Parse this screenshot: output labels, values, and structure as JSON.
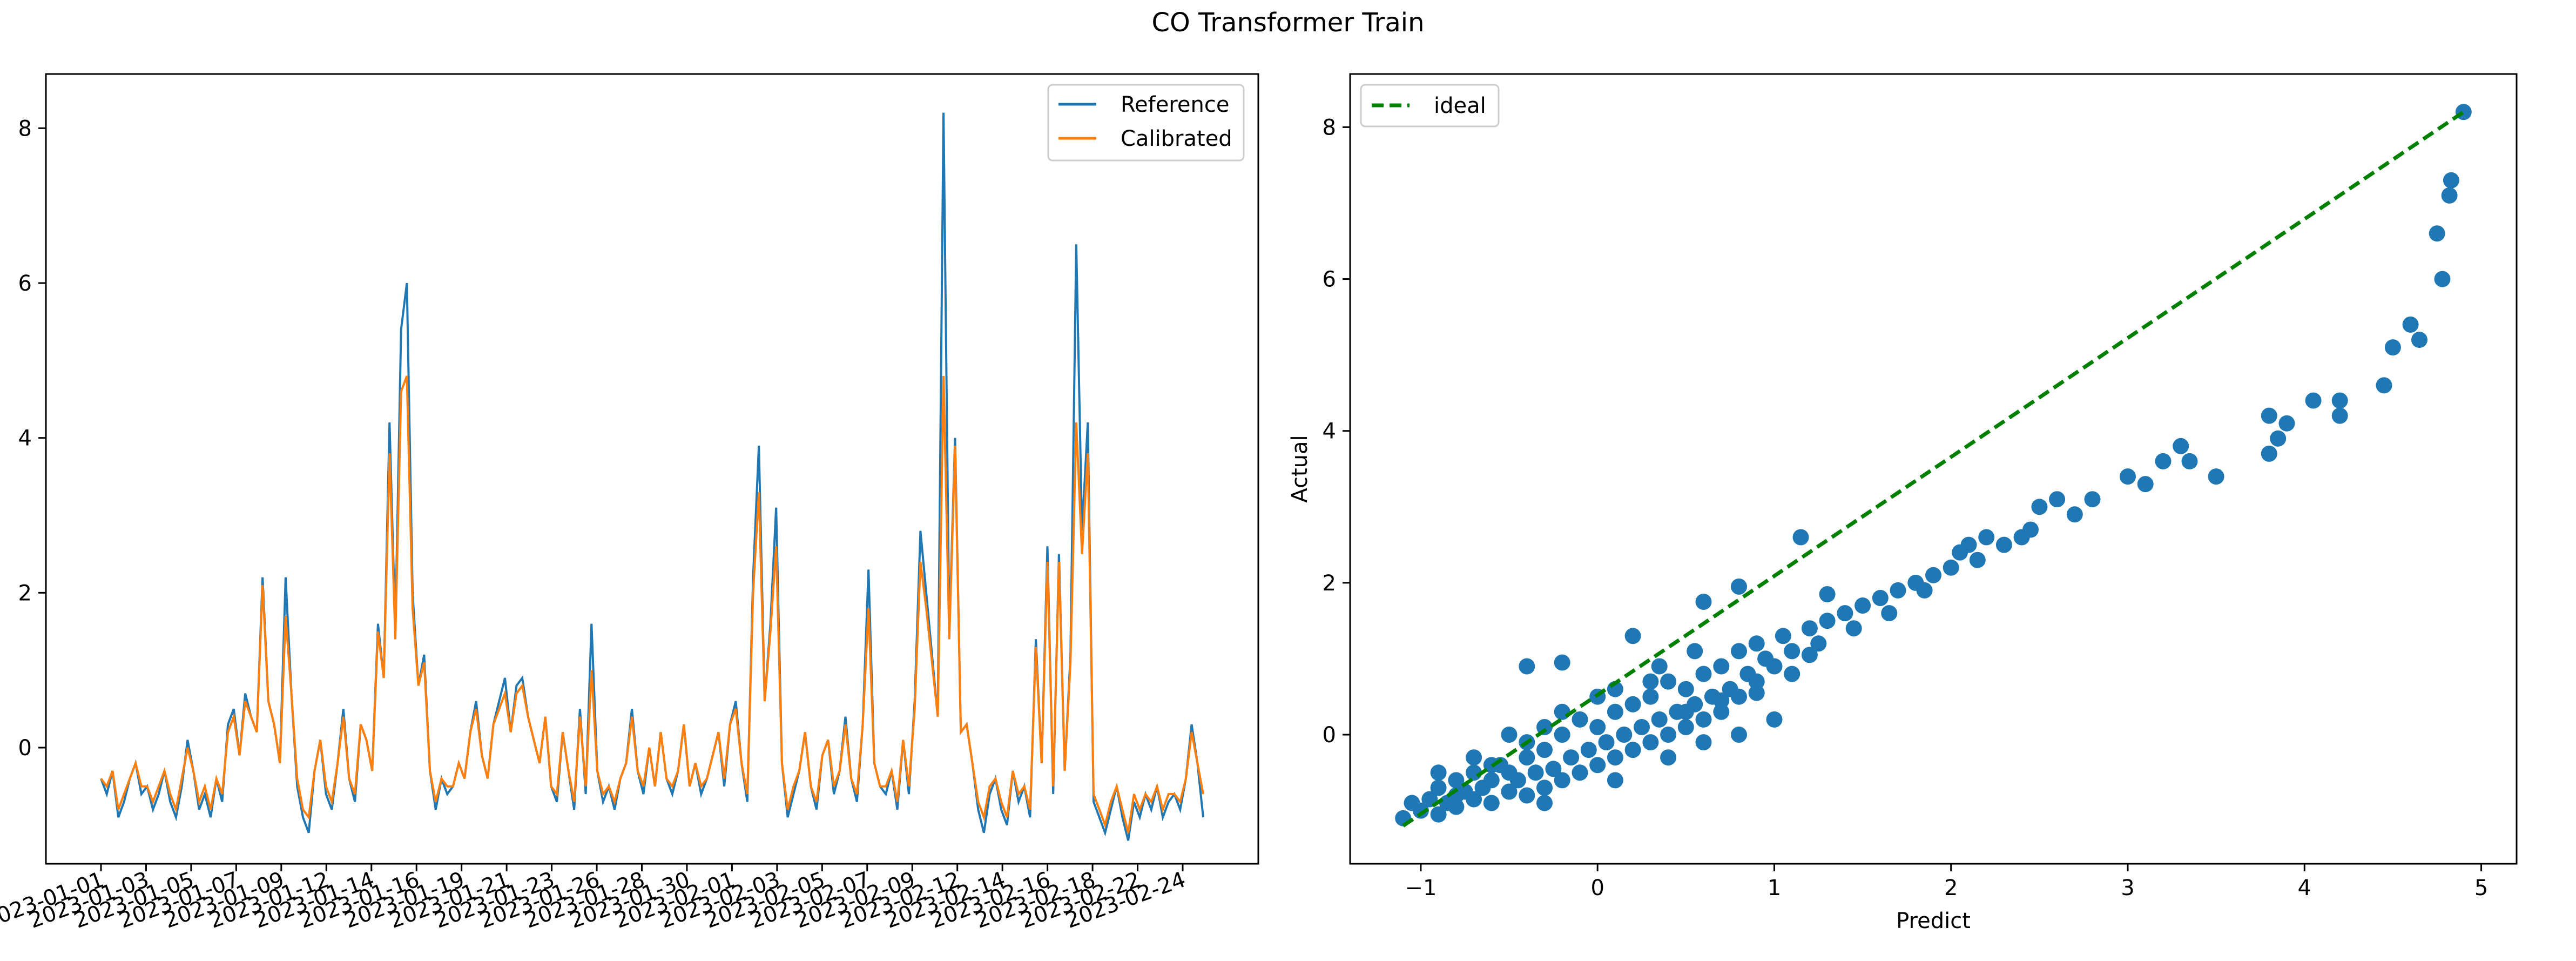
{
  "figure": {
    "title": "CO Transformer Train"
  },
  "chart_data": [
    {
      "type": "line",
      "title": "",
      "xlabel": "",
      "ylabel": "",
      "x_tick_labels": [
        "2023-01-01",
        "2023-01-03",
        "2023-01-05",
        "2023-01-07",
        "2023-01-09",
        "2023-01-12",
        "2023-01-14",
        "2023-01-16",
        "2023-01-19",
        "2023-01-21",
        "2023-01-23",
        "2023-01-26",
        "2023-01-28",
        "2023-01-30",
        "2023-02-01",
        "2023-02-03",
        "2023-02-05",
        "2023-02-07",
        "2023-02-09",
        "2023-02-12",
        "2023-02-14",
        "2023-02-16",
        "2023-02-18",
        "2023-02-22",
        "2023-02-24"
      ],
      "ylim": [
        -1.5,
        8.7
      ],
      "y_ticks": [
        0,
        2,
        4,
        6,
        8
      ],
      "legend": {
        "position": "top-right"
      },
      "grid": false,
      "series": [
        {
          "name": "Reference",
          "color": "#1f77b4",
          "values": [
            -0.4,
            -0.6,
            -0.3,
            -0.9,
            -0.7,
            -0.4,
            -0.2,
            -0.6,
            -0.5,
            -0.8,
            -0.6,
            -0.3,
            -0.7,
            -0.9,
            -0.5,
            0.1,
            -0.3,
            -0.8,
            -0.6,
            -0.9,
            -0.4,
            -0.7,
            0.3,
            0.5,
            -0.1,
            0.7,
            0.4,
            0.2,
            2.2,
            0.6,
            0.3,
            -0.2,
            2.2,
            0.7,
            -0.5,
            -0.9,
            -1.1,
            -0.3,
            0.1,
            -0.6,
            -0.8,
            -0.2,
            0.5,
            -0.4,
            -0.7,
            0.3,
            0.1,
            -0.3,
            1.6,
            0.9,
            4.2,
            1.5,
            5.4,
            6.0,
            2.0,
            0.8,
            1.2,
            -0.3,
            -0.8,
            -0.4,
            -0.6,
            -0.5,
            -0.2,
            -0.4,
            0.2,
            0.6,
            -0.1,
            -0.4,
            0.3,
            0.6,
            0.9,
            0.2,
            0.8,
            0.9,
            0.4,
            0.1,
            -0.2,
            0.4,
            -0.5,
            -0.7,
            0.2,
            -0.3,
            -0.8,
            0.5,
            -0.6,
            1.6,
            -0.3,
            -0.7,
            -0.5,
            -0.8,
            -0.4,
            -0.2,
            0.5,
            -0.3,
            -0.6,
            0.0,
            -0.5,
            0.2,
            -0.4,
            -0.6,
            -0.3,
            0.3,
            -0.5,
            -0.2,
            -0.6,
            -0.4,
            -0.1,
            0.2,
            -0.5,
            0.3,
            0.6,
            -0.2,
            -0.7,
            2.2,
            3.9,
            0.6,
            1.6,
            3.1,
            -0.2,
            -0.9,
            -0.6,
            -0.3,
            0.2,
            -0.5,
            -0.8,
            -0.1,
            0.1,
            -0.6,
            -0.3,
            0.4,
            -0.4,
            -0.7,
            0.3,
            2.3,
            -0.2,
            -0.5,
            -0.6,
            -0.3,
            -0.8,
            0.1,
            -0.6,
            0.6,
            2.8,
            2.0,
            1.2,
            0.4,
            8.2,
            1.5,
            4.0,
            0.2,
            0.3,
            -0.2,
            -0.8,
            -1.1,
            -0.6,
            -0.4,
            -0.8,
            -1.0,
            -0.3,
            -0.7,
            -0.5,
            -0.9,
            1.4,
            -0.2,
            2.6,
            -0.6,
            2.5,
            -0.3,
            1.2,
            6.5,
            2.8,
            4.2,
            -0.7,
            -0.9,
            -1.1,
            -0.8,
            -0.5,
            -0.9,
            -1.2,
            -0.7,
            -0.9,
            -0.6,
            -0.8,
            -0.5,
            -0.9,
            -0.7,
            -0.6,
            -0.8,
            -0.4,
            0.3,
            -0.2,
            -0.9
          ]
        },
        {
          "name": "Calibrated",
          "color": "#ff7f0e",
          "values": [
            -0.4,
            -0.5,
            -0.3,
            -0.8,
            -0.6,
            -0.4,
            -0.2,
            -0.5,
            -0.5,
            -0.7,
            -0.5,
            -0.3,
            -0.6,
            -0.8,
            -0.4,
            0.0,
            -0.3,
            -0.7,
            -0.5,
            -0.8,
            -0.4,
            -0.6,
            0.2,
            0.4,
            -0.1,
            0.6,
            0.4,
            0.2,
            2.1,
            0.6,
            0.3,
            -0.2,
            1.7,
            0.7,
            -0.4,
            -0.8,
            -0.9,
            -0.3,
            0.1,
            -0.5,
            -0.7,
            -0.2,
            0.4,
            -0.4,
            -0.6,
            0.3,
            0.1,
            -0.3,
            1.5,
            0.9,
            3.8,
            1.4,
            4.6,
            4.8,
            1.8,
            0.8,
            1.1,
            -0.3,
            -0.7,
            -0.4,
            -0.5,
            -0.5,
            -0.2,
            -0.4,
            0.2,
            0.5,
            -0.1,
            -0.4,
            0.3,
            0.5,
            0.7,
            0.2,
            0.7,
            0.8,
            0.4,
            0.1,
            -0.2,
            0.4,
            -0.5,
            -0.6,
            0.2,
            -0.3,
            -0.7,
            0.4,
            -0.5,
            1.0,
            -0.3,
            -0.6,
            -0.5,
            -0.7,
            -0.4,
            -0.2,
            0.4,
            -0.3,
            -0.5,
            0.0,
            -0.5,
            0.2,
            -0.4,
            -0.5,
            -0.3,
            0.3,
            -0.5,
            -0.2,
            -0.5,
            -0.4,
            -0.1,
            0.2,
            -0.4,
            0.3,
            0.5,
            -0.2,
            -0.6,
            2.0,
            3.3,
            0.6,
            1.5,
            2.6,
            -0.2,
            -0.8,
            -0.5,
            -0.3,
            0.2,
            -0.5,
            -0.7,
            -0.1,
            0.1,
            -0.5,
            -0.3,
            0.3,
            -0.4,
            -0.6,
            0.3,
            1.8,
            -0.2,
            -0.5,
            -0.5,
            -0.3,
            -0.7,
            0.1,
            -0.5,
            0.5,
            2.4,
            1.8,
            1.1,
            0.4,
            4.8,
            1.4,
            3.9,
            0.2,
            0.3,
            -0.2,
            -0.7,
            -0.9,
            -0.5,
            -0.4,
            -0.7,
            -0.9,
            -0.3,
            -0.6,
            -0.5,
            -0.8,
            1.3,
            -0.2,
            2.4,
            -0.5,
            2.4,
            -0.3,
            1.1,
            4.2,
            2.5,
            3.8,
            -0.6,
            -0.8,
            -1.0,
            -0.7,
            -0.5,
            -0.8,
            -1.1,
            -0.6,
            -0.8,
            -0.6,
            -0.7,
            -0.5,
            -0.8,
            -0.6,
            -0.6,
            -0.7,
            -0.4,
            0.2,
            -0.2,
            -0.6
          ]
        }
      ]
    },
    {
      "type": "scatter",
      "title": "",
      "xlabel": "Predict",
      "ylabel": "Actual",
      "xlim": [
        -1.4,
        5.2
      ],
      "ylim": [
        -1.7,
        8.7
      ],
      "x_ticks": [
        -1,
        0,
        1,
        2,
        3,
        4,
        5
      ],
      "y_ticks": [
        0,
        2,
        4,
        6,
        8
      ],
      "legend": {
        "position": "top-left"
      },
      "grid": false,
      "ideal_line": {
        "name": "ideal",
        "color": "#008000",
        "x": [
          -1.1,
          4.9
        ],
        "y": [
          -1.2,
          8.2
        ]
      },
      "points_color": "#1f77b4",
      "points": [
        [
          -1.1,
          -1.1
        ],
        [
          -1.05,
          -0.9
        ],
        [
          -1.0,
          -1.0
        ],
        [
          -0.95,
          -0.85
        ],
        [
          -0.9,
          -1.05
        ],
        [
          -0.9,
          -0.7
        ],
        [
          -0.85,
          -0.9
        ],
        [
          -0.8,
          -0.6
        ],
        [
          -0.8,
          -0.95
        ],
        [
          -0.75,
          -0.75
        ],
        [
          -0.7,
          -0.85
        ],
        [
          -0.7,
          -0.5
        ],
        [
          -0.65,
          -0.7
        ],
        [
          -0.6,
          -0.9
        ],
        [
          -0.6,
          -0.6
        ],
        [
          -0.55,
          -0.4
        ],
        [
          -0.5,
          -0.75
        ],
        [
          -0.5,
          -0.5
        ],
        [
          -0.45,
          -0.6
        ],
        [
          -0.4,
          -0.8
        ],
        [
          -0.4,
          -0.3
        ],
        [
          -0.35,
          -0.5
        ],
        [
          -0.3,
          -0.7
        ],
        [
          -0.3,
          -0.2
        ],
        [
          -0.25,
          -0.45
        ],
        [
          -0.2,
          -0.6
        ],
        [
          -0.2,
          0.0
        ],
        [
          -0.15,
          -0.3
        ],
        [
          -0.1,
          -0.5
        ],
        [
          -0.1,
          0.2
        ],
        [
          -0.05,
          -0.2
        ],
        [
          0.0,
          -0.4
        ],
        [
          0.0,
          0.1
        ],
        [
          0.05,
          -0.1
        ],
        [
          0.1,
          -0.3
        ],
        [
          0.1,
          0.3
        ],
        [
          0.15,
          0.0
        ],
        [
          0.2,
          -0.2
        ],
        [
          0.2,
          0.4
        ],
        [
          0.25,
          0.1
        ],
        [
          0.3,
          -0.1
        ],
        [
          0.3,
          0.5
        ],
        [
          0.35,
          0.2
        ],
        [
          0.4,
          0.0
        ],
        [
          0.4,
          0.7
        ],
        [
          0.45,
          0.3
        ],
        [
          0.5,
          0.1
        ],
        [
          0.5,
          0.6
        ],
        [
          0.55,
          0.4
        ],
        [
          0.6,
          0.2
        ],
        [
          0.6,
          0.8
        ],
        [
          0.65,
          0.5
        ],
        [
          0.7,
          0.3
        ],
        [
          0.7,
          0.9
        ],
        [
          0.75,
          0.6
        ],
        [
          0.8,
          0.5
        ],
        [
          0.8,
          1.1
        ],
        [
          0.85,
          0.8
        ],
        [
          0.9,
          0.7
        ],
        [
          0.9,
          1.2
        ],
        [
          0.95,
          1.0
        ],
        [
          1.0,
          0.9
        ],
        [
          1.05,
          1.3
        ],
        [
          1.1,
          1.1
        ],
        [
          1.2,
          1.4
        ],
        [
          1.25,
          1.2
        ],
        [
          1.3,
          1.5
        ],
        [
          1.4,
          1.6
        ],
        [
          1.45,
          1.4
        ],
        [
          1.5,
          1.7
        ],
        [
          1.6,
          1.8
        ],
        [
          1.65,
          1.6
        ],
        [
          1.7,
          1.9
        ],
        [
          1.8,
          2.0
        ],
        [
          1.85,
          1.9
        ],
        [
          1.9,
          2.1
        ],
        [
          2.0,
          2.2
        ],
        [
          2.05,
          2.4
        ],
        [
          2.1,
          2.5
        ],
        [
          2.15,
          2.3
        ],
        [
          2.2,
          2.6
        ],
        [
          2.3,
          2.5
        ],
        [
          2.4,
          2.6
        ],
        [
          2.45,
          2.7
        ],
        [
          2.5,
          3.0
        ],
        [
          2.6,
          3.1
        ],
        [
          2.7,
          2.9
        ],
        [
          2.8,
          3.1
        ],
        [
          3.0,
          3.4
        ],
        [
          3.1,
          3.3
        ],
        [
          3.2,
          3.6
        ],
        [
          3.3,
          3.8
        ],
        [
          3.35,
          3.6
        ],
        [
          3.5,
          3.4
        ],
        [
          3.8,
          4.2
        ],
        [
          3.8,
          3.7
        ],
        [
          3.85,
          3.9
        ],
        [
          3.9,
          4.1
        ],
        [
          4.05,
          4.4
        ],
        [
          4.2,
          4.4
        ],
        [
          4.2,
          4.2
        ],
        [
          4.45,
          4.6
        ],
        [
          4.5,
          5.1
        ],
        [
          4.6,
          5.4
        ],
        [
          4.65,
          5.2
        ],
        [
          4.75,
          6.6
        ],
        [
          4.78,
          6.0
        ],
        [
          4.82,
          7.1
        ],
        [
          4.83,
          7.3
        ],
        [
          4.9,
          8.2
        ],
        [
          -0.4,
          0.9
        ],
        [
          -0.2,
          0.95
        ],
        [
          0.2,
          1.3
        ],
        [
          0.6,
          1.75
        ],
        [
          0.8,
          1.95
        ],
        [
          1.15,
          2.6
        ],
        [
          1.3,
          1.85
        ],
        [
          -0.3,
          -0.9
        ],
        [
          0.1,
          -0.6
        ],
        [
          0.4,
          -0.3
        ],
        [
          0.6,
          -0.1
        ],
        [
          0.8,
          0.0
        ],
        [
          1.0,
          0.2
        ],
        [
          1.2,
          1.05
        ],
        [
          -0.8,
          -0.8
        ],
        [
          -0.6,
          -0.4
        ],
        [
          -0.4,
          -0.1
        ],
        [
          -0.2,
          0.3
        ],
        [
          0.0,
          0.5
        ],
        [
          0.3,
          0.7
        ],
        [
          0.5,
          0.3
        ],
        [
          0.7,
          0.45
        ],
        [
          0.9,
          0.55
        ],
        [
          1.1,
          0.8
        ],
        [
          -0.9,
          -0.5
        ],
        [
          -0.7,
          -0.3
        ],
        [
          -0.5,
          0.0
        ],
        [
          -0.3,
          0.1
        ],
        [
          0.1,
          0.6
        ],
        [
          0.35,
          0.9
        ],
        [
          0.55,
          1.1
        ]
      ]
    }
  ]
}
